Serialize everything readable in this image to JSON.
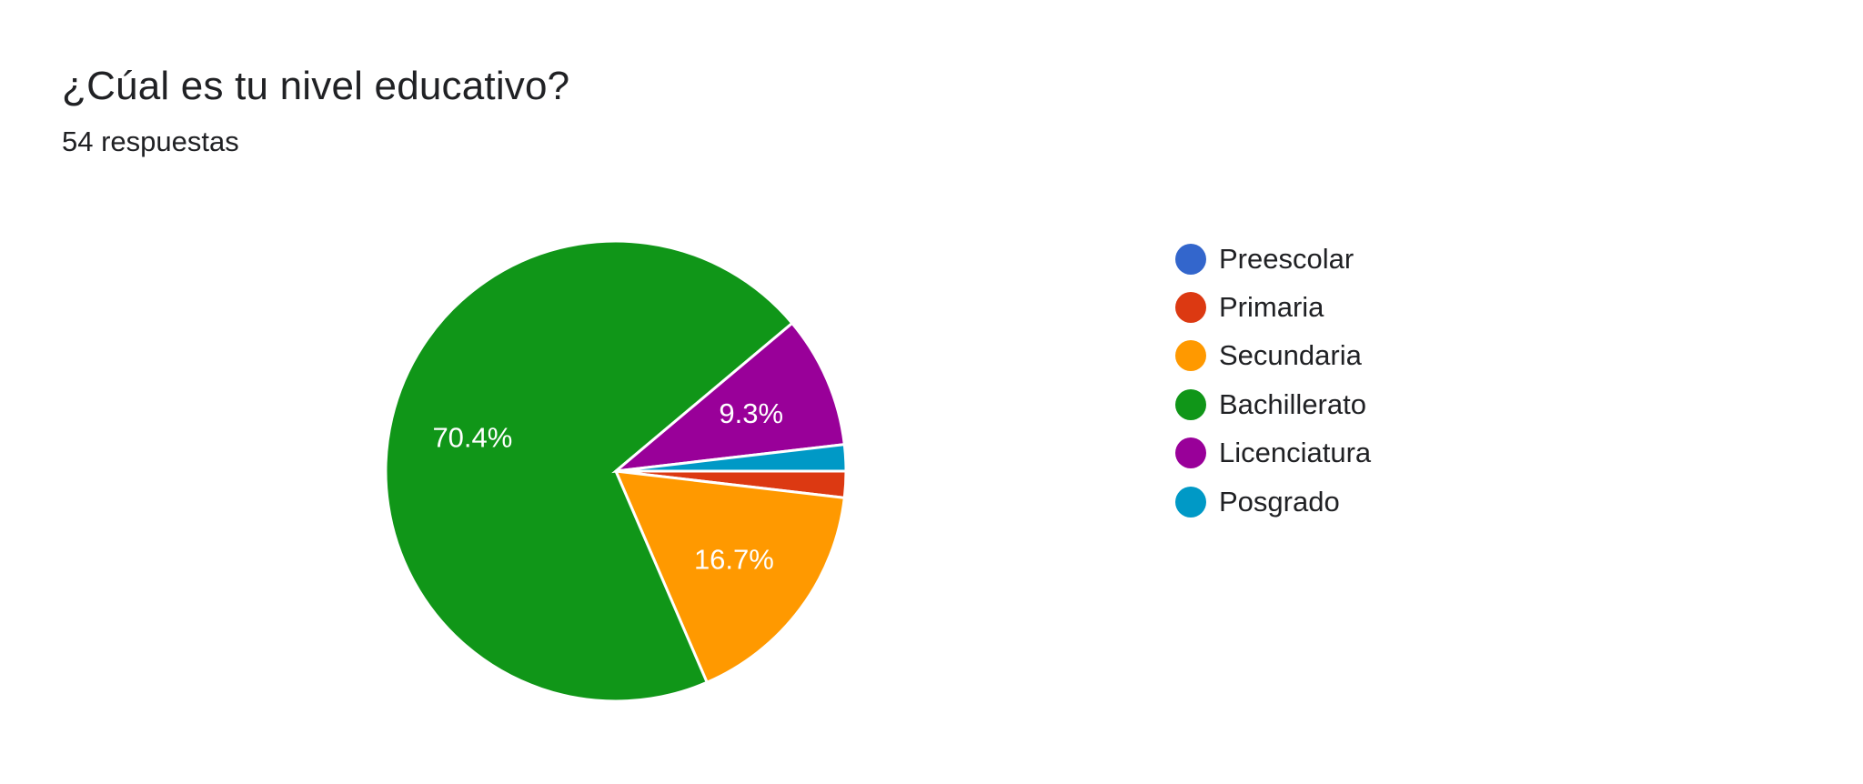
{
  "header": {
    "title": "¿Cúal es tu nivel educativo?",
    "responses": "54 respuestas"
  },
  "chart_data": {
    "type": "pie",
    "title": "¿Cúal es tu nivel educativo?",
    "total_responses": 54,
    "start_angle_deg": 0,
    "direction": "clockwise",
    "slices": [
      {
        "label": "Preescolar",
        "value": 0,
        "percent": 0.0,
        "color": "#3366cc",
        "show_label": false,
        "label_text": ""
      },
      {
        "label": "Primaria",
        "value": 1,
        "percent": 1.9,
        "color": "#dc3912",
        "show_label": false,
        "label_text": ""
      },
      {
        "label": "Secundaria",
        "value": 9,
        "percent": 16.7,
        "color": "#ff9900",
        "show_label": true,
        "label_text": "16.7%"
      },
      {
        "label": "Bachillerato",
        "value": 38,
        "percent": 70.4,
        "color": "#109618",
        "show_label": true,
        "label_text": "70.4%"
      },
      {
        "label": "Licenciatura",
        "value": 5,
        "percent": 9.3,
        "color": "#990099",
        "show_label": true,
        "label_text": "9.3%"
      },
      {
        "label": "Posgrado",
        "value": 1,
        "percent": 1.9,
        "color": "#0099c6",
        "show_label": false,
        "label_text": ""
      }
    ],
    "legend_position": "right"
  }
}
